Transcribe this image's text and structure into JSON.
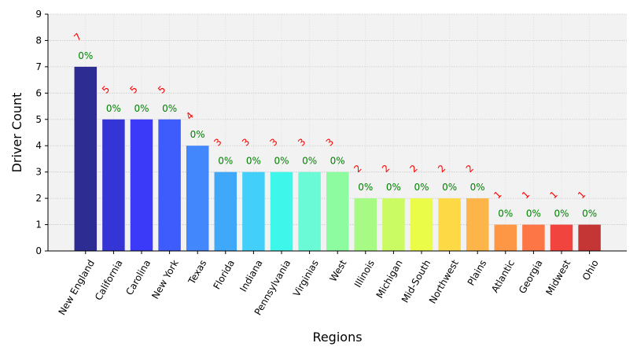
{
  "chart_data": {
    "type": "bar",
    "title": "",
    "xlabel": "Regions",
    "ylabel": "Driver Count",
    "ylim": [
      0,
      9
    ],
    "yticks": [
      0,
      1,
      2,
      3,
      4,
      5,
      6,
      7,
      8,
      9
    ],
    "grid": true,
    "categories": [
      "New England",
      "California",
      "Carolina",
      "New York",
      "Texas",
      "Florida",
      "Indiana",
      "Pennsylvania",
      "Virginias",
      "West",
      "Illinois",
      "Michigan",
      "Mid-South",
      "Northwest",
      "Plains",
      "Atlantic",
      "Georgia",
      "Midwest",
      "Ohio"
    ],
    "values": [
      7,
      5,
      5,
      5,
      4,
      3,
      3,
      3,
      3,
      3,
      2,
      2,
      2,
      2,
      2,
      1,
      1,
      1,
      1
    ],
    "count_labels": [
      "7",
      "5",
      "5",
      "5",
      "4",
      "3",
      "3",
      "3",
      "3",
      "3",
      "2",
      "2",
      "2",
      "2",
      "2",
      "1",
      "1",
      "1",
      "1"
    ],
    "percent_labels": [
      "0%",
      "0%",
      "0%",
      "0%",
      "0%",
      "0%",
      "0%",
      "0%",
      "0%",
      "0%",
      "0%",
      "0%",
      "0%",
      "0%",
      "0%",
      "0%",
      "0%",
      "0%",
      "0%"
    ],
    "colors": [
      "#2c2c93",
      "#3535d6",
      "#3a3af8",
      "#3e5cfb",
      "#4287fb",
      "#40a8f8",
      "#42d0fb",
      "#3ff6eb",
      "#6afad5",
      "#8dfca1",
      "#a7fb84",
      "#cbfb62",
      "#ebfc48",
      "#fdda45",
      "#fdb54a",
      "#fd9746",
      "#fd7646",
      "#f2443f",
      "#c43636"
    ],
    "count_label_color": "#ff0000",
    "percent_label_color": "#008000",
    "plot_background": "#f2f2f2"
  }
}
